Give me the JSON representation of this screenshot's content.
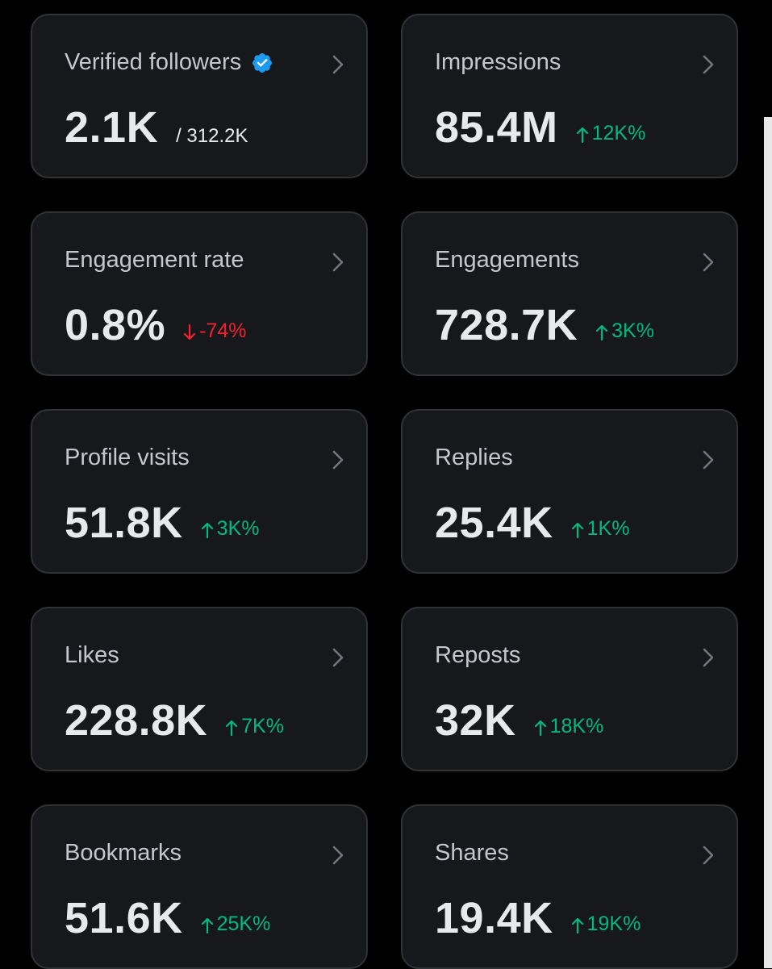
{
  "colors": {
    "background": "#000000",
    "card": "#16181c",
    "border": "#2f3336",
    "up": "#00ba7c",
    "down": "#f4212e",
    "verified": "#1d9bf0"
  },
  "cards": [
    {
      "title": "Verified followers",
      "value": "2.1K",
      "sub": "/ 312.2K",
      "icon": "verified-badge-icon"
    },
    {
      "title": "Impressions",
      "value": "85.4M",
      "change": "12K%",
      "direction": "up"
    },
    {
      "title": "Engagement rate",
      "value": "0.8%",
      "change": "-74%",
      "direction": "down"
    },
    {
      "title": "Engagements",
      "value": "728.7K",
      "change": "3K%",
      "direction": "up"
    },
    {
      "title": "Profile visits",
      "value": "51.8K",
      "change": "3K%",
      "direction": "up"
    },
    {
      "title": "Replies",
      "value": "25.4K",
      "change": "1K%",
      "direction": "up"
    },
    {
      "title": "Likes",
      "value": "228.8K",
      "change": "7K%",
      "direction": "up"
    },
    {
      "title": "Reposts",
      "value": "32K",
      "change": "18K%",
      "direction": "up"
    },
    {
      "title": "Bookmarks",
      "value": "51.6K",
      "change": "25K%",
      "direction": "up"
    },
    {
      "title": "Shares",
      "value": "19.4K",
      "change": "19K%",
      "direction": "up"
    }
  ]
}
